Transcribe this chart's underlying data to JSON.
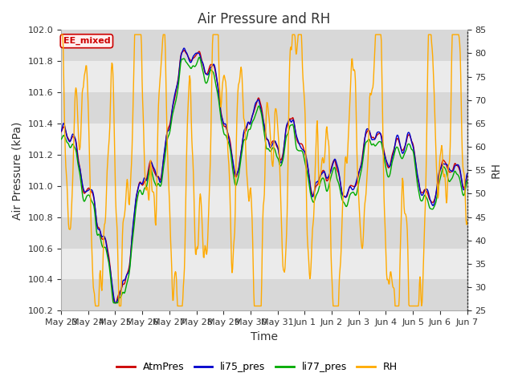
{
  "title": "Air Pressure and RH",
  "xlabel": "Time",
  "ylabel_left": "Air Pressure (kPa)",
  "ylabel_right": "RH",
  "ylim_left": [
    100.2,
    102.0
  ],
  "ylim_right": [
    25,
    85
  ],
  "yticks_left": [
    100.2,
    100.4,
    100.6,
    100.8,
    101.0,
    101.2,
    101.4,
    101.6,
    101.8,
    102.0
  ],
  "yticks_right": [
    25,
    30,
    35,
    40,
    45,
    50,
    55,
    60,
    65,
    70,
    75,
    80,
    85
  ],
  "xtick_labels": [
    "May 23",
    "May 24",
    "May 25",
    "May 26",
    "May 27",
    "May 28",
    "May 29",
    "May 30",
    "May 31",
    "Jun 1",
    "Jun 2",
    "Jun 3",
    "Jun 4",
    "Jun 5",
    "Jun 6",
    "Jun 7"
  ],
  "annotation_text": "EE_mixed",
  "annotation_bg": "#fff0f0",
  "annotation_border": "#cc0000",
  "line_colors": {
    "AtmPres": "#cc0000",
    "li75_pres": "#0000cc",
    "li77_pres": "#00aa00",
    "RH": "#ffaa00"
  },
  "legend_labels": [
    "AtmPres",
    "li75_pres",
    "li77_pres",
    "RH"
  ],
  "bg_band_color_dark": "#d8d8d8",
  "bg_band_color_light": "#ebebeb",
  "figsize": [
    6.4,
    4.8
  ],
  "dpi": 100
}
